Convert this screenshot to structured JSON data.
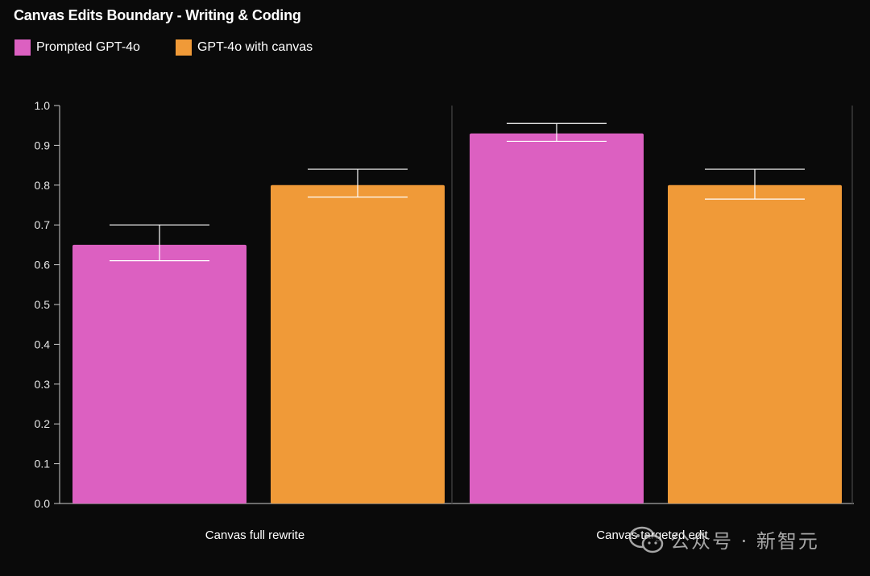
{
  "chart_data": {
    "type": "bar",
    "title": "Canvas Edits Boundary - Writing & Coding",
    "categories": [
      "Canvas full rewrite",
      "Canvas targeted edit"
    ],
    "series": [
      {
        "name": "Prompted GPT-4o",
        "color": "#dc60c1",
        "values": [
          0.65,
          0.93
        ],
        "error_low": [
          0.61,
          0.91
        ],
        "error_high": [
          0.7,
          0.955
        ]
      },
      {
        "name": "GPT-4o with canvas",
        "color": "#f09a38",
        "values": [
          0.8,
          0.8
        ],
        "error_low": [
          0.77,
          0.765
        ],
        "error_high": [
          0.84,
          0.84
        ]
      }
    ],
    "xlabel": "",
    "ylabel": "",
    "ylim": [
      0.0,
      1.0
    ],
    "yticks": [
      "0.0",
      "0.1",
      "0.2",
      "0.3",
      "0.4",
      "0.5",
      "0.6",
      "0.7",
      "0.8",
      "0.9",
      "1.0"
    ],
    "legend_position": "top-left",
    "grid": false
  },
  "watermark": {
    "icon": "wechat-icon",
    "text": "公众号 · 新智元"
  }
}
